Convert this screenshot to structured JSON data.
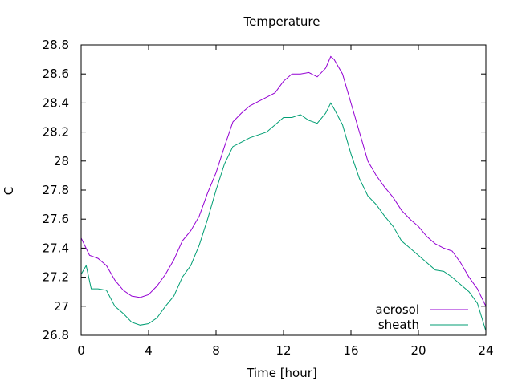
{
  "chart_data": {
    "type": "line",
    "title": "Temperature",
    "xlabel": "Time [hour]",
    "ylabel": "C",
    "xlim": [
      0,
      24
    ],
    "ylim": [
      26.8,
      28.8
    ],
    "xticks": [
      0,
      4,
      8,
      12,
      16,
      20,
      24
    ],
    "yticks": [
      26.8,
      27,
      27.2,
      27.4,
      27.6,
      27.8,
      28,
      28.2,
      28.4,
      28.6,
      28.8
    ],
    "xtick_labels": [
      "0",
      "4",
      "8",
      "12",
      "16",
      "20",
      "24"
    ],
    "ytick_labels": [
      "26.8",
      "27",
      "27.2",
      "27.4",
      "27.6",
      "27.8",
      "28",
      "28.2",
      "28.4",
      "28.6",
      "28.8"
    ],
    "grid": false,
    "legend_position": "bottom-right",
    "series": [
      {
        "name": "aerosol",
        "color": "#9400d3",
        "x": [
          0,
          0.5,
          1,
          1.5,
          2,
          2.5,
          3,
          3.5,
          4,
          4.5,
          5,
          5.5,
          6,
          6.5,
          7,
          7.5,
          8,
          8.5,
          9,
          9.5,
          10,
          10.5,
          11,
          11.5,
          12,
          12.5,
          13,
          13.5,
          14,
          14.5,
          14.8,
          15,
          15.5,
          16,
          16.5,
          17,
          17.5,
          18,
          18.5,
          19,
          19.5,
          20,
          20.5,
          21,
          21.5,
          22,
          22.5,
          23,
          23.5,
          24
        ],
        "y": [
          27.47,
          27.35,
          27.33,
          27.28,
          27.18,
          27.11,
          27.07,
          27.06,
          27.08,
          27.14,
          27.22,
          27.32,
          27.45,
          27.52,
          27.62,
          27.78,
          27.92,
          28.1,
          28.27,
          28.33,
          28.38,
          28.41,
          28.44,
          28.47,
          28.55,
          28.6,
          28.6,
          28.61,
          28.58,
          28.64,
          28.72,
          28.7,
          28.6,
          28.4,
          28.2,
          28.0,
          27.9,
          27.82,
          27.75,
          27.66,
          27.6,
          27.55,
          27.48,
          27.43,
          27.4,
          27.38,
          27.3,
          27.2,
          27.12,
          27.0
        ]
      },
      {
        "name": "sheath",
        "color": "#009e73",
        "x": [
          0,
          0.3,
          0.6,
          1,
          1.5,
          2,
          2.5,
          3,
          3.5,
          4,
          4.5,
          5,
          5.5,
          6,
          6.5,
          7,
          7.5,
          8,
          8.5,
          9,
          9.5,
          10,
          10.5,
          11,
          11.5,
          12,
          12.5,
          13,
          13.5,
          14,
          14.5,
          14.8,
          15,
          15.5,
          16,
          16.5,
          17,
          17.5,
          18,
          18.5,
          19,
          19.5,
          20,
          20.5,
          21,
          21.5,
          22,
          22.5,
          23,
          23.5,
          24
        ],
        "y": [
          27.22,
          27.28,
          27.12,
          27.12,
          27.11,
          27.0,
          26.95,
          26.89,
          26.87,
          26.88,
          26.92,
          27.0,
          27.07,
          27.2,
          27.28,
          27.42,
          27.6,
          27.8,
          27.98,
          28.1,
          28.13,
          28.16,
          28.18,
          28.2,
          28.25,
          28.3,
          28.3,
          28.32,
          28.28,
          28.26,
          28.33,
          28.4,
          28.36,
          28.25,
          28.05,
          27.88,
          27.76,
          27.7,
          27.62,
          27.55,
          27.45,
          27.4,
          27.35,
          27.3,
          27.25,
          27.24,
          27.2,
          27.15,
          27.1,
          27.02,
          26.83
        ]
      }
    ]
  }
}
